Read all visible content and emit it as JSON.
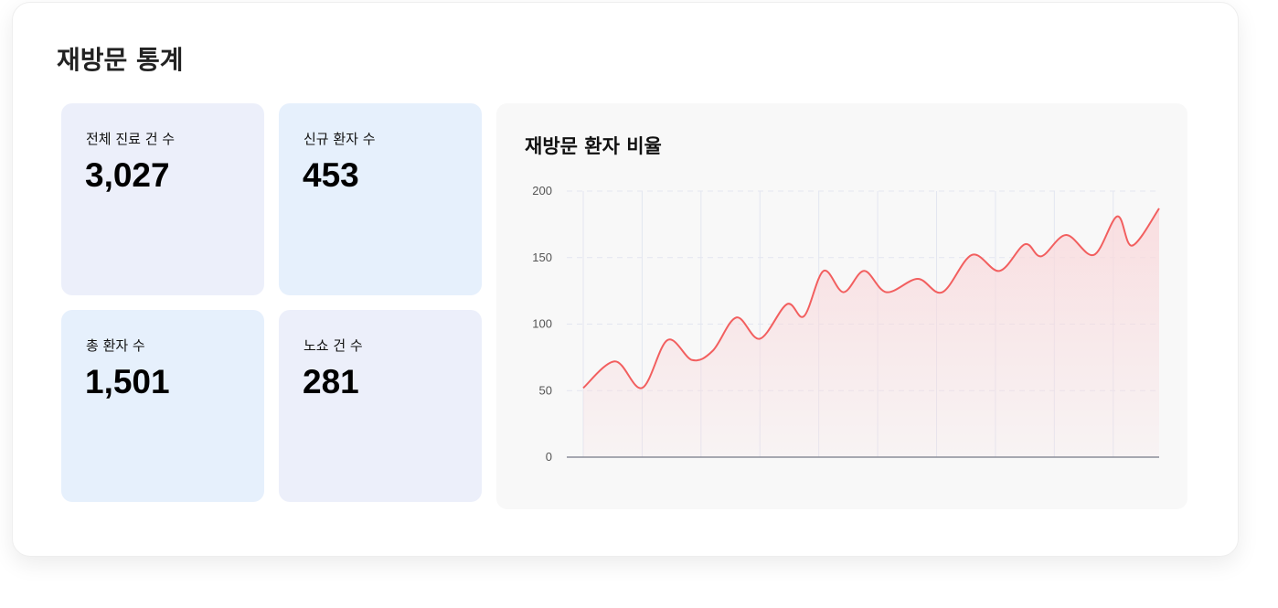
{
  "page": {
    "title": "재방문 통계"
  },
  "stats": [
    {
      "label": "전체 진료 건 수",
      "value": "3,027",
      "color": "#eceffa"
    },
    {
      "label": "신규 환자 수",
      "value": "453",
      "color": "#e6f0fc"
    },
    {
      "label": "총 환자 수",
      "value": "1,501",
      "color": "#e6f0fc"
    },
    {
      "label": "노쇼 건 수",
      "value": "281",
      "color": "#eceffa"
    }
  ],
  "chart_data": {
    "type": "area",
    "title": "재방문 환자 비율",
    "xlabel": "",
    "ylabel": "",
    "ylim": [
      0,
      200
    ],
    "yticks": [
      "0",
      "50",
      "100",
      "150",
      "200"
    ],
    "xlim": [
      0,
      9.78
    ],
    "x_gridlines": [
      0,
      1,
      2,
      3,
      4,
      5,
      6,
      7,
      8,
      9
    ],
    "grid": true,
    "line_color": "#f25f5f",
    "fill_color": "#f9d9dc",
    "points": [
      [
        0,
        52
      ],
      [
        0.54,
        72
      ],
      [
        1.0,
        52
      ],
      [
        1.43,
        88
      ],
      [
        1.85,
        73
      ],
      [
        2.2,
        80
      ],
      [
        2.6,
        105
      ],
      [
        3.0,
        89
      ],
      [
        3.46,
        115
      ],
      [
        3.75,
        106
      ],
      [
        4.08,
        140
      ],
      [
        4.42,
        124
      ],
      [
        4.77,
        140
      ],
      [
        5.15,
        124
      ],
      [
        5.68,
        134
      ],
      [
        6.1,
        124
      ],
      [
        6.6,
        152
      ],
      [
        7.07,
        140
      ],
      [
        7.5,
        160
      ],
      [
        7.78,
        151
      ],
      [
        8.2,
        167
      ],
      [
        8.67,
        152
      ],
      [
        9.07,
        181
      ],
      [
        9.32,
        159
      ],
      [
        9.78,
        187
      ]
    ]
  }
}
